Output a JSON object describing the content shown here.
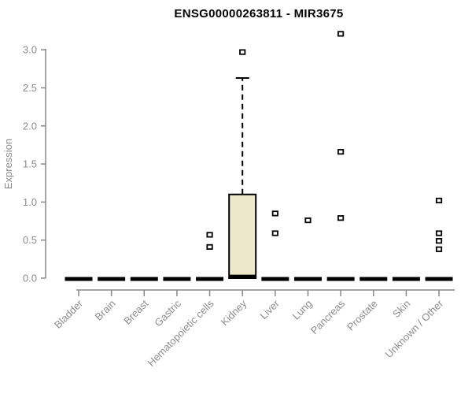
{
  "chart_data": {
    "type": "boxplot",
    "title": "ENSG00000263811 - MIR3675",
    "xlabel": "",
    "ylabel": "Expression",
    "ylim": [
      0.0,
      3.25
    ],
    "grid": false,
    "legend": null,
    "ytick_labels": [
      "0.0",
      "0.5",
      "1.0",
      "1.5",
      "2.0",
      "2.5",
      "3.0"
    ],
    "ytick_values": [
      0.0,
      0.5,
      1.0,
      1.5,
      2.0,
      2.5,
      3.0
    ],
    "categories": [
      "Bladder",
      "Brain",
      "Breast",
      "Gastric",
      "Hematopoietic cells",
      "Kidney",
      "Liver",
      "Lung",
      "Pancreas",
      "Prostate",
      "Skin",
      "Unknown / Other"
    ],
    "series": [
      {
        "category": "Bladder",
        "median": 0.0,
        "q1": 0.0,
        "q3": 0.0,
        "whisker_low": 0.0,
        "whisker_high": 0.0,
        "outliers": []
      },
      {
        "category": "Brain",
        "median": 0.0,
        "q1": 0.0,
        "q3": 0.0,
        "whisker_low": 0.0,
        "whisker_high": 0.0,
        "outliers": []
      },
      {
        "category": "Breast",
        "median": 0.0,
        "q1": 0.0,
        "q3": 0.0,
        "whisker_low": 0.0,
        "whisker_high": 0.0,
        "outliers": []
      },
      {
        "category": "Gastric",
        "median": 0.0,
        "q1": 0.0,
        "q3": 0.0,
        "whisker_low": 0.0,
        "whisker_high": 0.0,
        "outliers": []
      },
      {
        "category": "Hematopoietic cells",
        "median": 0.0,
        "q1": 0.0,
        "q3": 0.0,
        "whisker_low": 0.0,
        "whisker_high": 0.0,
        "outliers": [
          0.57,
          0.41
        ]
      },
      {
        "category": "Kidney",
        "median": 0.02,
        "q1": 0.0,
        "q3": 1.1,
        "whisker_low": 0.0,
        "whisker_high": 2.63,
        "outliers": [
          2.97
        ]
      },
      {
        "category": "Liver",
        "median": 0.0,
        "q1": 0.0,
        "q3": 0.0,
        "whisker_low": 0.0,
        "whisker_high": 0.0,
        "outliers": [
          0.85,
          0.59
        ]
      },
      {
        "category": "Lung",
        "median": 0.0,
        "q1": 0.0,
        "q3": 0.0,
        "whisker_low": 0.0,
        "whisker_high": 0.0,
        "outliers": [
          0.76
        ]
      },
      {
        "category": "Pancreas",
        "median": 0.0,
        "q1": 0.0,
        "q3": 0.0,
        "whisker_low": 0.0,
        "whisker_high": 0.0,
        "outliers": [
          3.21,
          1.66,
          0.79
        ]
      },
      {
        "category": "Prostate",
        "median": 0.0,
        "q1": 0.0,
        "q3": 0.0,
        "whisker_low": 0.0,
        "whisker_high": 0.0,
        "outliers": []
      },
      {
        "category": "Skin",
        "median": 0.0,
        "q1": 0.0,
        "q3": 0.0,
        "whisker_low": 0.0,
        "whisker_high": 0.0,
        "outliers": []
      },
      {
        "category": "Unknown / Other",
        "median": 0.0,
        "q1": 0.0,
        "q3": 0.0,
        "whisker_low": 0.0,
        "whisker_high": 0.0,
        "outliers": [
          1.02,
          0.59,
          0.49,
          0.38
        ]
      }
    ],
    "colors": {
      "background": "#ffffff",
      "title_text": "#000000",
      "axis_line": "#888888",
      "axis_text": "#8c8c8c",
      "box_fill": "#ede8cc",
      "box_border": "#000000",
      "outlier_fill": "#ffffff",
      "outlier_border": "#000000"
    }
  }
}
